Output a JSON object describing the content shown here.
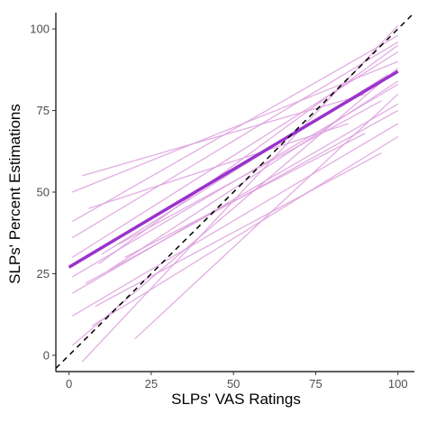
{
  "chart_data": {
    "type": "line",
    "xlabel": "SLPs' VAS Ratings",
    "ylabel": "SLPs' Percent Estimations",
    "xlim": [
      -4,
      105
    ],
    "ylim": [
      -5,
      105
    ],
    "x_ticks": [
      0,
      25,
      50,
      75,
      100
    ],
    "y_ticks": [
      0,
      25,
      50,
      75,
      100
    ],
    "grid": false,
    "reference_line": {
      "style": "dashed",
      "color": "#000000",
      "x": [
        -4,
        105
      ],
      "y": [
        -4,
        105
      ]
    },
    "fit_line": {
      "color": "#9a32cd",
      "x": [
        0,
        100
      ],
      "y": [
        27,
        87
      ]
    },
    "individual_color": "#dda0dd",
    "individual_lines": [
      {
        "x": [
          4,
          90
        ],
        "y": [
          55,
          80
        ]
      },
      {
        "x": [
          1,
          100
        ],
        "y": [
          50,
          90
        ]
      },
      {
        "x": [
          1,
          100
        ],
        "y": [
          41,
          98
        ]
      },
      {
        "x": [
          1,
          100
        ],
        "y": [
          36,
          96
        ]
      },
      {
        "x": [
          1,
          100
        ],
        "y": [
          30,
          93
        ]
      },
      {
        "x": [
          1,
          100
        ],
        "y": [
          24,
          83
        ]
      },
      {
        "x": [
          1,
          100
        ],
        "y": [
          19,
          77
        ]
      },
      {
        "x": [
          1,
          100
        ],
        "y": [
          12,
          71
        ]
      },
      {
        "x": [
          1,
          100
        ],
        "y": [
          3,
          88
        ]
      },
      {
        "x": [
          4,
          100
        ],
        "y": [
          -2,
          101
        ]
      },
      {
        "x": [
          5,
          100
        ],
        "y": [
          22,
          75
        ]
      },
      {
        "x": [
          7,
          100
        ],
        "y": [
          9,
          67
        ]
      },
      {
        "x": [
          9,
          100
        ],
        "y": [
          28,
          95
        ]
      },
      {
        "x": [
          10,
          97
        ],
        "y": [
          31,
          86
        ]
      },
      {
        "x": [
          12,
          100
        ],
        "y": [
          26,
          84
        ]
      },
      {
        "x": [
          15,
          95
        ],
        "y": [
          34,
          78
        ]
      },
      {
        "x": [
          17,
          90
        ],
        "y": [
          30,
          68
        ]
      },
      {
        "x": [
          6,
          85
        ],
        "y": [
          45,
          71
        ]
      },
      {
        "x": [
          20,
          100
        ],
        "y": [
          5,
          80
        ]
      },
      {
        "x": [
          8,
          95
        ],
        "y": [
          15,
          62
        ]
      }
    ]
  }
}
